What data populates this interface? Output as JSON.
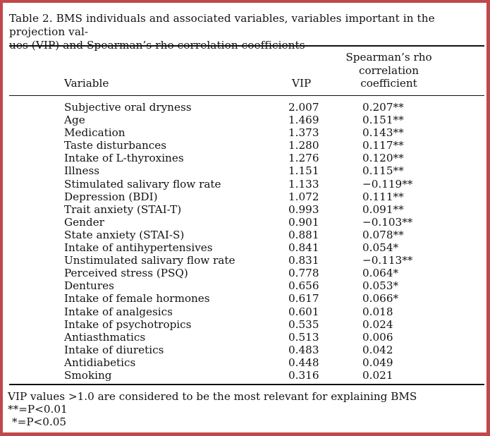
{
  "caption": {
    "line1": "Table 2. BMS individuals and associated variables, variables important in the projection val-",
    "line2": "ues (VIP) and Spearman’s rho correlation coefficients"
  },
  "columns": {
    "variable": "Variable",
    "vip": "VIP",
    "rho_line1": "Spearman’s rho",
    "rho_line2": "correlation",
    "rho_line3": "coefficient"
  },
  "rows": [
    {
      "variable": "Subjective oral dryness",
      "vip": "2.007",
      "rho": "0.207**"
    },
    {
      "variable": "Age",
      "vip": "1.469",
      "rho": "0.151**"
    },
    {
      "variable": "Medication",
      "vip": "1.373",
      "rho": "0.143**"
    },
    {
      "variable": "Taste disturbances",
      "vip": "1.280",
      "rho": "0.117**"
    },
    {
      "variable": "Intake of L-thyroxines",
      "vip": "1.276",
      "rho": "0.120**"
    },
    {
      "variable": "Illness",
      "vip": "1.151",
      "rho": "0.115**"
    },
    {
      "variable": "Stimulated salivary flow rate",
      "vip": "1.133",
      "rho": "−0.119**"
    },
    {
      "variable": "Depression (BDI)",
      "vip": "1.072",
      "rho": "0.111**"
    },
    {
      "variable": "Trait anxiety (STAI-T)",
      "vip": "0.993",
      "rho": "0.091**"
    },
    {
      "variable": "Gender",
      "vip": "0.901",
      "rho": "−0.103**"
    },
    {
      "variable": "State anxiety (STAI-S)",
      "vip": "0.881",
      "rho": "0.078**"
    },
    {
      "variable": "Intake of antihypertensives",
      "vip": "0.841",
      "rho": "0.054*"
    },
    {
      "variable": "Unstimulated salivary flow rate",
      "vip": "0.831",
      "rho": "−0.113**"
    },
    {
      "variable": "Perceived stress (PSQ)",
      "vip": "0.778",
      "rho": "0.064*"
    },
    {
      "variable": "Dentures",
      "vip": "0.656",
      "rho": "0.053*"
    },
    {
      "variable": "Intake of female hormones",
      "vip": "0.617",
      "rho": "0.066*"
    },
    {
      "variable": "Intake of analgesics",
      "vip": "0.601",
      "rho": "0.018"
    },
    {
      "variable": "Intake of psychotropics",
      "vip": "0.535",
      "rho": "0.024"
    },
    {
      "variable": "Antiasthmatics",
      "vip": "0.513",
      "rho": "0.006"
    },
    {
      "variable": "Intake of diuretics",
      "vip": "0.483",
      "rho": "0.042"
    },
    {
      "variable": "Antidiabetics",
      "vip": "0.448",
      "rho": "0.049"
    },
    {
      "variable": "Smoking",
      "vip": "0.316",
      "rho": "0.021"
    }
  ],
  "footnotes": {
    "vip_note": "VIP values >1.0 are considered to be the most relevant for explaining BMS",
    "double_star": "**=P<0.01",
    "single_star": "*=P<0.05"
  },
  "colors": {
    "frame": "#c0484d",
    "background": "#ffffff",
    "text": "#111111"
  }
}
